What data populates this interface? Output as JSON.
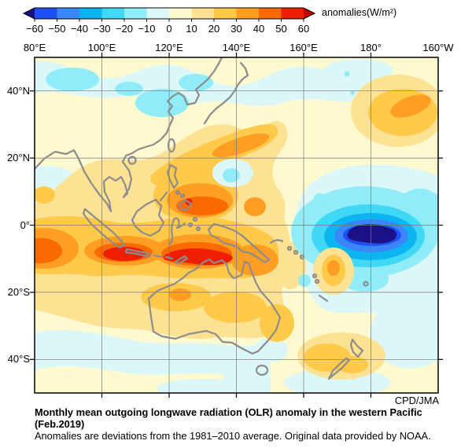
{
  "colorbar": {
    "label": "anomalies(W/m²)",
    "ticks": [
      "−60",
      "−50",
      "−40",
      "−30",
      "−20",
      "−10",
      "0",
      "10",
      "20",
      "30",
      "40",
      "50",
      "60"
    ],
    "segment_colors": [
      "#1E4FF2",
      "#3A86FA",
      "#0CB4F0",
      "#40D8F5",
      "#8FECF8",
      "#DCF7F7",
      "#FEF9CE",
      "#FEE294",
      "#FFC94A",
      "#FF9E22",
      "#FA6A00",
      "#F01E00"
    ],
    "under_arrow_color": "#1C1086",
    "over_arrow_color": "#C40000"
  },
  "axes": {
    "lon_labels": [
      "80°E",
      "100°E",
      "120°E",
      "140°E",
      "160°E",
      "180°",
      "160°W"
    ],
    "lat_labels": [
      "40°N",
      "20°N",
      "0°",
      "20°S",
      "40°S"
    ]
  },
  "credit": "CPD/JMA",
  "caption": {
    "line1": "Monthly mean outgoing longwave radiation (OLR) anomaly in the western Pacific",
    "line2": "(Feb.2019)",
    "source": "Anomalies are deviations from the 1981–2010 average. Original data provided by NOAA."
  },
  "chart_data": {
    "type": "heatmap",
    "title": "Monthly mean outgoing longwave radiation (OLR) anomaly in the western Pacific (Feb.2019)",
    "units": "W/m2",
    "colorbar_label": "anomalies(W/m²)",
    "colorbar_ticks": [
      -60,
      -50,
      -40,
      -30,
      -20,
      -10,
      0,
      10,
      20,
      30,
      40,
      50,
      60
    ],
    "lon_extent": [
      "80E",
      "160W (200E)"
    ],
    "lat_extent": [
      "50S",
      "50N"
    ],
    "grid": true,
    "gridline_interval_deg": 20,
    "credit": "CPD/JMA",
    "source_note": "Anomalies are deviations from the 1981–2010 average. Original data provided by NOAA.",
    "features": [
      {
        "region": "Eastern Indian Ocean / Maritime Continent band (85E–140E, 5S–15S)",
        "anomaly_wm2": "+30 to +60; red cores > +50 near 103–112E,10S and 122–137E,10S"
      },
      {
        "region": "Philippines / Philippine Sea (118–145E, 0N–15N)",
        "anomaly_wm2": "+20 to +50; small > +50 speck near Mindanao (127E,6N)"
      },
      {
        "region": "Subtropical NW Pacific streak (122–150E, 15N–27N)",
        "anomaly_wm2": "+20 to +30"
      },
      {
        "region": "Australia interior (115–150E, 18S–30S)",
        "anomaly_wm2": "+10 to +30"
      },
      {
        "region": "South Pacific near date line (165E–165W, 0S–12S)",
        "anomaly_wm2": "-30 to below -60; minimum < -60 centered near 178E,5S"
      },
      {
        "region": "East Asia / mid-latitude band (85E–160E, 28N–48N)",
        "anomaly_wm2": "-10 to -20"
      },
      {
        "region": "North Pacific blob (170E–165W, 30N–40N)",
        "anomaly_wm2": "+10 to +40"
      },
      {
        "region": "Near New Zealand (160E–180E, 30S–45S)",
        "anomaly_wm2": "+10 to +30"
      },
      {
        "region": "Cyan hole east of Philippines (134E–144E, 11N–19N)",
        "anomaly_wm2": "-10 to -20"
      },
      {
        "region": "Southern Ocean fringe (80E–160W, 33S–50S)",
        "anomaly_wm2": "-10 to +10 alternating patches"
      }
    ]
  }
}
